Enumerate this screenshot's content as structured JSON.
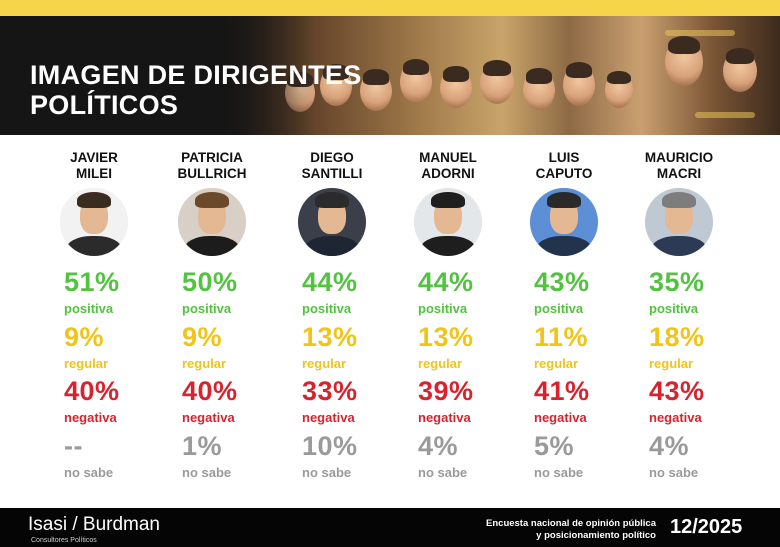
{
  "header": {
    "title_line1": "IMAGEN DE DIRIGENTES",
    "title_line2": "POLÍTICOS"
  },
  "chart_data": {
    "type": "table",
    "rows": [
      "positiva",
      "regular",
      "negativa",
      "no sabe"
    ],
    "columns": [
      {
        "name": "JAVIER\nMILEI",
        "positive": 51,
        "regular": 9,
        "negative": 40,
        "unknown": null,
        "positive_text": "51%",
        "regular_text": "9%",
        "negative_text": "40%",
        "unknown_text": "--"
      },
      {
        "name": "PATRICIA\nBULLRICH",
        "positive": 50,
        "regular": 9,
        "negative": 40,
        "unknown": 1,
        "positive_text": "50%",
        "regular_text": "9%",
        "negative_text": "40%",
        "unknown_text": "1%"
      },
      {
        "name": "DIEGO\nSANTILLI",
        "positive": 44,
        "regular": 13,
        "negative": 33,
        "unknown": 10,
        "positive_text": "44%",
        "regular_text": "13%",
        "negative_text": "33%",
        "unknown_text": "10%"
      },
      {
        "name": "MANUEL\nADORNI",
        "positive": 44,
        "regular": 13,
        "negative": 39,
        "unknown": 4,
        "positive_text": "44%",
        "regular_text": "13%",
        "negative_text": "39%",
        "unknown_text": "4%"
      },
      {
        "name": "LUIS\nCAPUTO",
        "positive": 43,
        "regular": 11,
        "negative": 41,
        "unknown": 5,
        "positive_text": "43%",
        "regular_text": "11%",
        "negative_text": "41%",
        "unknown_text": "5%"
      },
      {
        "name": "MAURICIO\nMACRI",
        "positive": 35,
        "regular": 18,
        "negative": 43,
        "unknown": 4,
        "positive_text": "35%",
        "regular_text": "18%",
        "negative_text": "43%",
        "unknown_text": "4%"
      }
    ],
    "colors": {
      "positive": "#53c241",
      "regular": "#f0c419",
      "negative": "#d8232f",
      "unknown": "#9a9a9a"
    }
  },
  "footer": {
    "brand": "Isasi / Burdman",
    "subtitle": "Consultores Políticos",
    "survey_line1": "Encuesta nacional de opinión pública",
    "survey_line2": "y posicionamiento político",
    "date": "12/2025"
  }
}
